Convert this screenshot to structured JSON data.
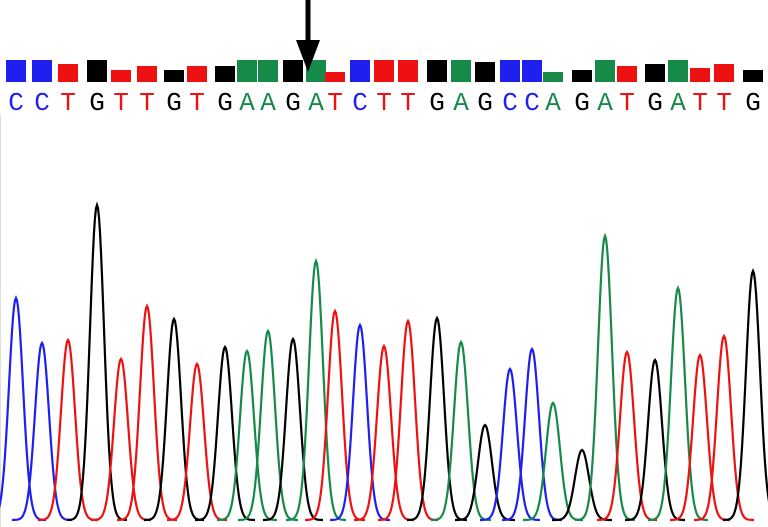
{
  "colors": {
    "A": "#168a48",
    "C": "#1f1ff0",
    "G": "#000000",
    "T": "#ee1111"
  },
  "bases": [
    {
      "letter": "C",
      "quality": 22,
      "peak": 222
    },
    {
      "letter": "C",
      "quality": 22,
      "peak": 177
    },
    {
      "letter": "T",
      "quality": 18,
      "peak": 180
    },
    {
      "letter": "G",
      "quality": 22,
      "peak": 315
    },
    {
      "letter": "T",
      "quality": 12,
      "peak": 161
    },
    {
      "letter": "T",
      "quality": 16,
      "peak": 214
    },
    {
      "letter": "G",
      "quality": 12,
      "peak": 201
    },
    {
      "letter": "T",
      "quality": 16,
      "peak": 156
    },
    {
      "letter": "G",
      "quality": 16,
      "peak": 173
    },
    {
      "letter": "A",
      "quality": 22,
      "peak": 169
    },
    {
      "letter": "A",
      "quality": 22,
      "peak": 189
    },
    {
      "letter": "G",
      "quality": 22,
      "peak": 181
    },
    {
      "letter": "A",
      "quality": 22,
      "peak": 259
    },
    {
      "letter": "T",
      "quality": 10,
      "peak": 209
    },
    {
      "letter": "C",
      "quality": 22,
      "peak": 195
    },
    {
      "letter": "T",
      "quality": 22,
      "peak": 174
    },
    {
      "letter": "T",
      "quality": 22,
      "peak": 199
    },
    {
      "letter": "G",
      "quality": 22,
      "peak": 202
    },
    {
      "letter": "A",
      "quality": 22,
      "peak": 178
    },
    {
      "letter": "G",
      "quality": 20,
      "peak": 95
    },
    {
      "letter": "C",
      "quality": 22,
      "peak": 151
    },
    {
      "letter": "C",
      "quality": 22,
      "peak": 171
    },
    {
      "letter": "A",
      "quality": 10,
      "peak": 117
    },
    {
      "letter": "G",
      "quality": 12,
      "peak": 70
    },
    {
      "letter": "A",
      "quality": 22,
      "peak": 284
    },
    {
      "letter": "T",
      "quality": 16,
      "peak": 168
    },
    {
      "letter": "G",
      "quality": 18,
      "peak": 160
    },
    {
      "letter": "A",
      "quality": 22,
      "peak": 232
    },
    {
      "letter": "T",
      "quality": 14,
      "peak": 165
    },
    {
      "letter": "T",
      "quality": 18,
      "peak": 184
    },
    {
      "letter": "G",
      "quality": 12,
      "peak": 249
    }
  ]
}
